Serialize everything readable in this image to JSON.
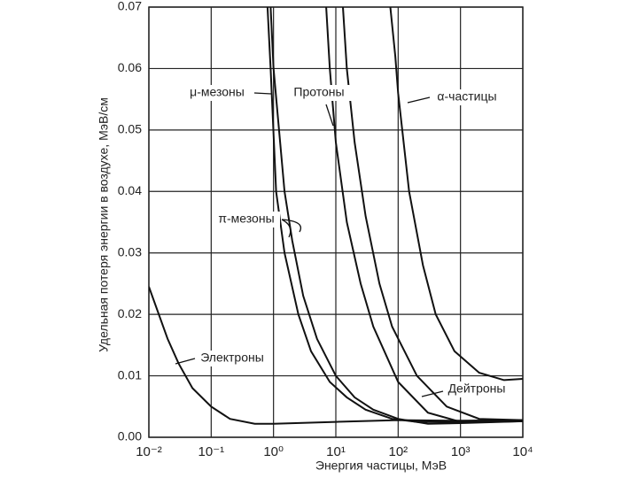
{
  "chart_data": {
    "type": "line",
    "x_label": "Энергия частицы, МэВ",
    "y_label": "Удельная потеря энергии в воздухе, МэВ/см",
    "xscale": "log",
    "grid": true,
    "xlim": [
      0.01,
      10000
    ],
    "xticks": [
      {
        "value": 0.01,
        "label": "10⁻²"
      },
      {
        "value": 0.1,
        "label": "10⁻¹"
      },
      {
        "value": 1,
        "label": "10⁰"
      },
      {
        "value": 10,
        "label": "10¹"
      },
      {
        "value": 100,
        "label": "10²"
      },
      {
        "value": 1000,
        "label": "10³"
      },
      {
        "value": 10000,
        "label": "10⁴"
      }
    ],
    "ylim": [
      0,
      0.07
    ],
    "yticks": [
      {
        "value": 0,
        "label": "0.00"
      },
      {
        "value": 0.01,
        "label": "0.01"
      },
      {
        "value": 0.02,
        "label": "0.02"
      },
      {
        "value": 0.03,
        "label": "0.03"
      },
      {
        "value": 0.04,
        "label": "0.04"
      },
      {
        "value": 0.05,
        "label": "0.05"
      },
      {
        "value": 0.06,
        "label": "0.06"
      },
      {
        "value": 0.07,
        "label": "0.07"
      }
    ],
    "series": [
      {
        "name": "Электроны",
        "color": "#111111",
        "x": [
          0.01,
          0.02,
          0.03,
          0.05,
          0.1,
          0.2,
          0.5,
          1,
          10,
          100,
          1000,
          10000
        ],
        "values": [
          0.0245,
          0.016,
          0.012,
          0.008,
          0.005,
          0.003,
          0.0022,
          0.0022,
          0.0025,
          0.0028,
          0.0027,
          0.0028
        ]
      },
      {
        "name": "μ-мезоны",
        "color": "#111111",
        "x": [
          0.8,
          0.9,
          1.1,
          1.5,
          2.5,
          4,
          8,
          15,
          30,
          80,
          200,
          1000,
          10000
        ],
        "values": [
          0.07,
          0.06,
          0.04,
          0.03,
          0.02,
          0.014,
          0.009,
          0.0065,
          0.0045,
          0.003,
          0.0025,
          0.0025,
          0.0027
        ]
      },
      {
        "name": "π-мезоны",
        "color": "#111111",
        "x": [
          0.9,
          1.0,
          1.5,
          2,
          3,
          5,
          10,
          20,
          40,
          100,
          300,
          1000,
          10000
        ],
        "values": [
          0.07,
          0.06,
          0.04,
          0.032,
          0.023,
          0.016,
          0.01,
          0.0065,
          0.0045,
          0.003,
          0.0022,
          0.0023,
          0.0026
        ]
      },
      {
        "name": "Протоны",
        "color": "#111111",
        "x": [
          7,
          8,
          10,
          15,
          25,
          40,
          100,
          300,
          1000,
          3000,
          10000
        ],
        "values": [
          0.07,
          0.06,
          0.048,
          0.035,
          0.025,
          0.018,
          0.009,
          0.004,
          0.0025,
          0.0025,
          0.0026
        ]
      },
      {
        "name": "Дейтроны",
        "color": "#111111",
        "x": [
          13,
          15,
          20,
          30,
          50,
          80,
          200,
          600,
          2000,
          10000
        ],
        "values": [
          0.07,
          0.06,
          0.048,
          0.036,
          0.025,
          0.018,
          0.01,
          0.005,
          0.003,
          0.0028
        ]
      },
      {
        "name": "α-частицы",
        "color": "#111111",
        "x": [
          75,
          90,
          100,
          150,
          250,
          400,
          800,
          2000,
          5000,
          10000
        ],
        "values": [
          0.07,
          0.062,
          0.056,
          0.04,
          0.028,
          0.02,
          0.014,
          0.0105,
          0.0093,
          0.0095
        ]
      }
    ]
  }
}
